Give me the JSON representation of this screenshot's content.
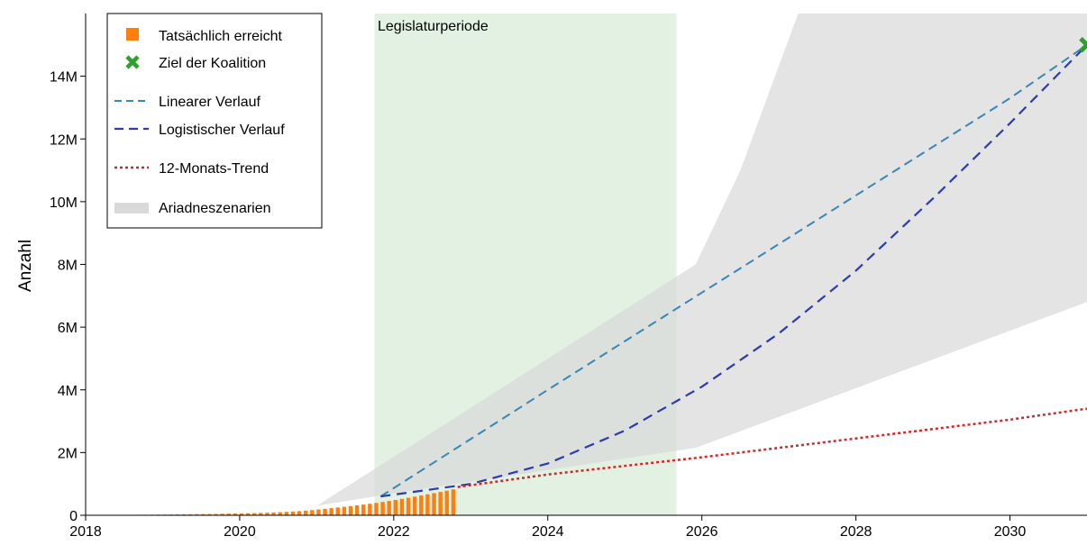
{
  "chart_data": {
    "type": "bar",
    "title": "",
    "xlabel": "",
    "ylabel": "Anzahl",
    "xlim": [
      2018.0,
      2031.0
    ],
    "ylim": [
      0,
      16000000
    ],
    "x_ticks": [
      2018,
      2020,
      2022,
      2024,
      2026,
      2028,
      2030
    ],
    "x_tick_labels": [
      "2018",
      "2020",
      "2022",
      "2024",
      "2026",
      "2028",
      "2030"
    ],
    "y_ticks": [
      0,
      2000000,
      4000000,
      6000000,
      8000000,
      10000000,
      12000000,
      14000000
    ],
    "y_tick_labels": [
      "0",
      "2M",
      "4M",
      "6M",
      "8M",
      "10M",
      "12M",
      "14M"
    ],
    "grid": false,
    "legend_position": "top-left",
    "period_band": {
      "label": "Legislaturperiode",
      "x_start": 2021.75,
      "x_end": 2025.67,
      "color": "#e3f1e3"
    },
    "colors": {
      "actual": "#ff7f0e",
      "target": "#2ca02c",
      "linear": "#3a86b5",
      "logistic": "#2c3ab5",
      "trend": "#d62728",
      "scenarios": "#d9d9d9"
    },
    "series": [
      {
        "name": "Tatsächlich erreicht",
        "kind": "bar",
        "x_start": 2018.0,
        "x_end": 2022.83,
        "monthly_values": [
          8000,
          9000,
          10000,
          11000,
          12000,
          13000,
          14000,
          15000,
          16000,
          17000,
          19000,
          21000,
          23000,
          25000,
          27000,
          29000,
          32000,
          35000,
          38000,
          41000,
          44000,
          48000,
          52000,
          56000,
          60000,
          65000,
          70000,
          76000,
          83000,
          90000,
          98000,
          108000,
          120000,
          133000,
          148000,
          165000,
          185000,
          206000,
          227000,
          248000,
          270000,
          292000,
          315000,
          340000,
          367000,
          395000,
          425000,
          456000,
          489000,
          523000,
          558000,
          594000,
          631000,
          668000,
          706000,
          745000,
          785000,
          825000
        ]
      },
      {
        "name": "Ziel der Koalition",
        "kind": "marker",
        "points": [
          {
            "x": 2031.0,
            "y": 15000000
          }
        ]
      },
      {
        "name": "Linearer Verlauf",
        "kind": "line",
        "points": [
          {
            "x": 2021.83,
            "y": 600000
          },
          {
            "x": 2024.0,
            "y": 4000000
          },
          {
            "x": 2026.0,
            "y": 7100000
          },
          {
            "x": 2028.0,
            "y": 10200000
          },
          {
            "x": 2030.0,
            "y": 13300000
          },
          {
            "x": 2031.0,
            "y": 15000000
          }
        ]
      },
      {
        "name": "Logistischer Verlauf",
        "kind": "line",
        "points": [
          {
            "x": 2021.83,
            "y": 600000
          },
          {
            "x": 2023.0,
            "y": 1000000
          },
          {
            "x": 2024.0,
            "y": 1650000
          },
          {
            "x": 2025.0,
            "y": 2700000
          },
          {
            "x": 2026.0,
            "y": 4100000
          },
          {
            "x": 2027.0,
            "y": 5800000
          },
          {
            "x": 2028.0,
            "y": 7800000
          },
          {
            "x": 2029.0,
            "y": 10100000
          },
          {
            "x": 2030.0,
            "y": 12500000
          },
          {
            "x": 2031.0,
            "y": 15000000
          }
        ]
      },
      {
        "name": "12-Monats-Trend",
        "kind": "line",
        "points": [
          {
            "x": 2022.83,
            "y": 900000
          },
          {
            "x": 2024.0,
            "y": 1300000
          },
          {
            "x": 2026.0,
            "y": 1850000
          },
          {
            "x": 2028.0,
            "y": 2450000
          },
          {
            "x": 2030.0,
            "y": 3050000
          },
          {
            "x": 2031.0,
            "y": 3400000
          }
        ]
      },
      {
        "name": "Ariadneszenarien",
        "kind": "band",
        "upper": [
          {
            "x": 2021.0,
            "y": 300000
          },
          {
            "x": 2025.92,
            "y": 8000000
          },
          {
            "x": 2026.5,
            "y": 11000000
          },
          {
            "x": 2027.25,
            "y": 16000000
          },
          {
            "x": 2031.0,
            "y": 16000000
          }
        ],
        "lower": [
          {
            "x": 2021.0,
            "y": 300000
          },
          {
            "x": 2022.0,
            "y": 700000
          },
          {
            "x": 2025.92,
            "y": 2150000
          },
          {
            "x": 2031.0,
            "y": 6800000
          }
        ]
      }
    ]
  },
  "legend": {
    "items": [
      {
        "label": "Tatsächlich erreicht",
        "symbol": "square-icon"
      },
      {
        "label": "Ziel der Koalition",
        "symbol": "x-marker-icon"
      },
      {
        "label": "Linearer Verlauf",
        "symbol": "dashed-line-icon"
      },
      {
        "label": "Logistischer Verlauf",
        "symbol": "dashed-line-icon"
      },
      {
        "label": "12-Monats-Trend",
        "symbol": "dotted-line-icon"
      },
      {
        "label": "Ariadneszenarien",
        "symbol": "band-icon"
      }
    ]
  }
}
